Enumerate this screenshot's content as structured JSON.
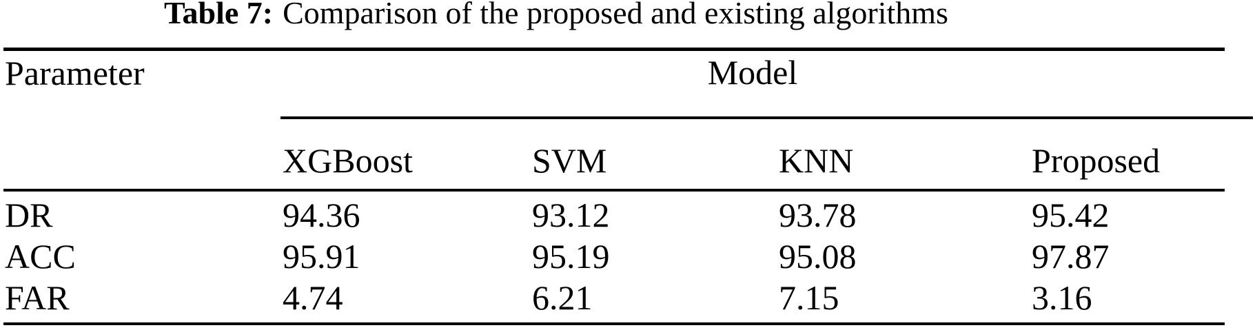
{
  "caption": {
    "label": "Table 7:",
    "text": "Comparison of the proposed and existing algorithms"
  },
  "table": {
    "param_header": "Parameter",
    "group_header": "Model",
    "columns": [
      "XGBoost",
      "SVM",
      "KNN",
      "Proposed"
    ],
    "rows": [
      {
        "param": "DR",
        "values": [
          "94.36",
          "93.12",
          "93.78",
          "95.42"
        ]
      },
      {
        "param": "ACC",
        "values": [
          "95.91",
          "95.19",
          "95.08",
          "97.87"
        ]
      },
      {
        "param": "FAR",
        "values": [
          "4.74",
          "6.21",
          "7.15",
          "3.16"
        ]
      }
    ]
  },
  "chart_data": {
    "type": "table",
    "title": "Table 7: Comparison of the proposed and existing algorithms",
    "columns": [
      "Parameter",
      "XGBoost",
      "SVM",
      "KNN",
      "Proposed"
    ],
    "column_group": {
      "label": "Model",
      "spans": [
        "XGBoost",
        "SVM",
        "KNN",
        "Proposed"
      ]
    },
    "rows": [
      [
        "DR",
        94.36,
        93.12,
        93.78,
        95.42
      ],
      [
        "ACC",
        95.91,
        95.19,
        95.08,
        97.87
      ],
      [
        "FAR",
        4.74,
        6.21,
        7.15,
        3.16
      ]
    ]
  },
  "colors": {
    "background": "#ffffff",
    "text": "#000000",
    "rule": "#000000"
  }
}
